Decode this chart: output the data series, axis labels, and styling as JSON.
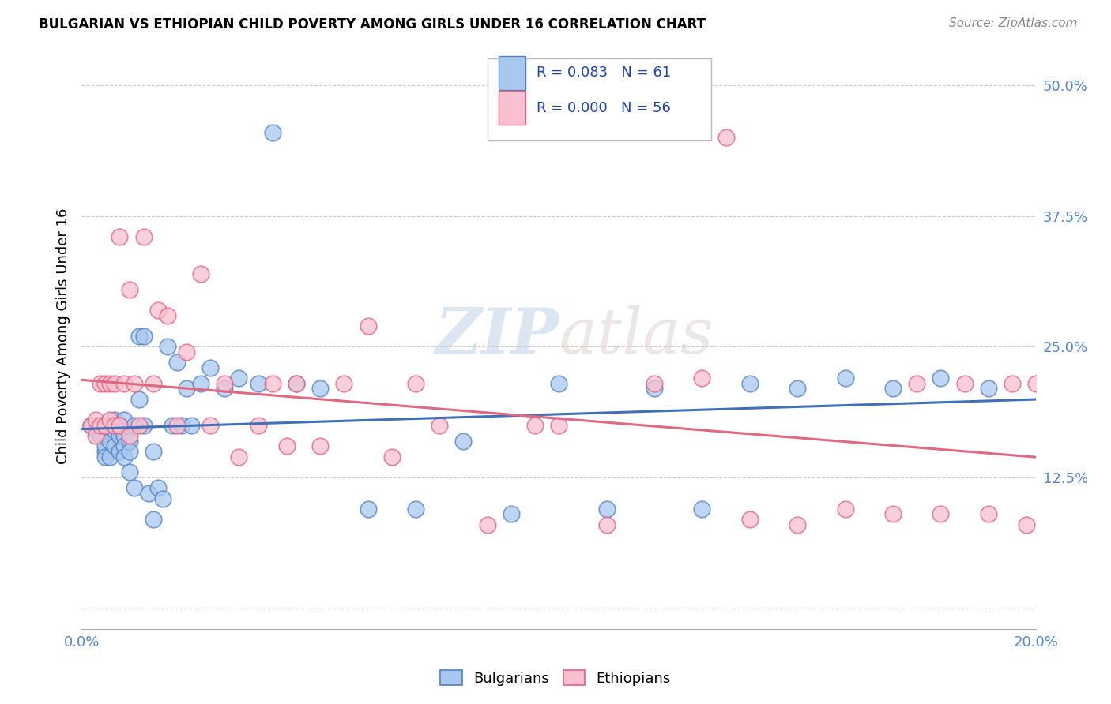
{
  "title": "BULGARIAN VS ETHIOPIAN CHILD POVERTY AMONG GIRLS UNDER 16 CORRELATION CHART",
  "source": "Source: ZipAtlas.com",
  "ylabel": "Child Poverty Among Girls Under 16",
  "xlim": [
    0.0,
    0.2
  ],
  "ylim": [
    -0.02,
    0.54
  ],
  "yticks": [
    0.0,
    0.125,
    0.25,
    0.375,
    0.5
  ],
  "ytick_labels": [
    "",
    "12.5%",
    "25.0%",
    "37.5%",
    "50.0%"
  ],
  "watermark_zip": "ZIP",
  "watermark_atlas": "atlas",
  "legend_blue_label": "Bulgarians",
  "legend_pink_label": "Ethiopians",
  "R_blue": "0.083",
  "N_blue": "61",
  "R_pink": "0.000",
  "N_pink": "56",
  "blue_fill": "#A8C8F0",
  "pink_fill": "#F8C0D0",
  "blue_edge": "#5080C0",
  "pink_edge": "#E06080",
  "blue_line": "#4070B8",
  "pink_line": "#E06880",
  "bg_color": "#FFFFFF",
  "grid_color": "#CCCCCC",
  "bulgarians_x": [
    0.002,
    0.003,
    0.004,
    0.004,
    0.005,
    0.005,
    0.005,
    0.006,
    0.006,
    0.007,
    0.007,
    0.007,
    0.008,
    0.008,
    0.008,
    0.009,
    0.009,
    0.009,
    0.009,
    0.01,
    0.01,
    0.01,
    0.011,
    0.011,
    0.012,
    0.012,
    0.013,
    0.013,
    0.014,
    0.015,
    0.015,
    0.016,
    0.017,
    0.018,
    0.019,
    0.02,
    0.021,
    0.022,
    0.023,
    0.025,
    0.027,
    0.03,
    0.033,
    0.037,
    0.04,
    0.045,
    0.05,
    0.06,
    0.07,
    0.08,
    0.09,
    0.1,
    0.11,
    0.12,
    0.13,
    0.14,
    0.15,
    0.16,
    0.17,
    0.18,
    0.19
  ],
  "bulgarians_y": [
    0.175,
    0.17,
    0.165,
    0.175,
    0.15,
    0.155,
    0.145,
    0.16,
    0.145,
    0.18,
    0.17,
    0.155,
    0.175,
    0.165,
    0.15,
    0.18,
    0.165,
    0.155,
    0.145,
    0.16,
    0.15,
    0.13,
    0.175,
    0.115,
    0.2,
    0.26,
    0.175,
    0.26,
    0.11,
    0.085,
    0.15,
    0.115,
    0.105,
    0.25,
    0.175,
    0.235,
    0.175,
    0.21,
    0.175,
    0.215,
    0.23,
    0.21,
    0.22,
    0.215,
    0.455,
    0.215,
    0.21,
    0.095,
    0.095,
    0.16,
    0.09,
    0.215,
    0.095,
    0.21,
    0.095,
    0.215,
    0.21,
    0.22,
    0.21,
    0.22,
    0.21
  ],
  "ethiopians_x": [
    0.002,
    0.003,
    0.003,
    0.004,
    0.004,
    0.005,
    0.005,
    0.006,
    0.006,
    0.007,
    0.007,
    0.008,
    0.008,
    0.009,
    0.01,
    0.01,
    0.011,
    0.012,
    0.013,
    0.015,
    0.016,
    0.018,
    0.02,
    0.022,
    0.025,
    0.027,
    0.03,
    0.033,
    0.037,
    0.04,
    0.043,
    0.045,
    0.05,
    0.055,
    0.06,
    0.065,
    0.07,
    0.075,
    0.085,
    0.095,
    0.1,
    0.11,
    0.12,
    0.13,
    0.135,
    0.14,
    0.15,
    0.16,
    0.17,
    0.175,
    0.18,
    0.185,
    0.19,
    0.195,
    0.198,
    0.2
  ],
  "ethiopians_y": [
    0.175,
    0.18,
    0.165,
    0.175,
    0.215,
    0.175,
    0.215,
    0.18,
    0.215,
    0.175,
    0.215,
    0.175,
    0.355,
    0.215,
    0.165,
    0.305,
    0.215,
    0.175,
    0.355,
    0.215,
    0.285,
    0.28,
    0.175,
    0.245,
    0.32,
    0.175,
    0.215,
    0.145,
    0.175,
    0.215,
    0.155,
    0.215,
    0.155,
    0.215,
    0.27,
    0.145,
    0.215,
    0.175,
    0.08,
    0.175,
    0.175,
    0.08,
    0.215,
    0.22,
    0.45,
    0.085,
    0.08,
    0.095,
    0.09,
    0.215,
    0.09,
    0.215,
    0.09,
    0.215,
    0.08,
    0.215
  ]
}
